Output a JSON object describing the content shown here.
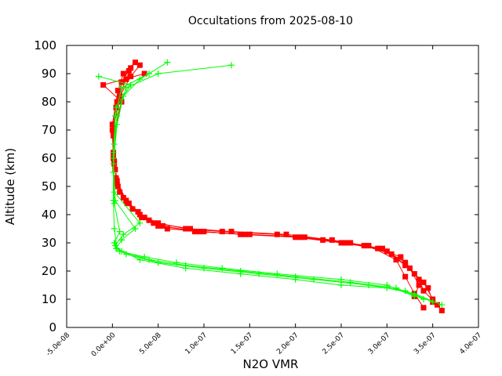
{
  "chart_data": {
    "type": "scatter",
    "title": "Occultations from 2025-08-10",
    "xlabel": "N2O VMR",
    "ylabel": "Altitude (km)",
    "xlim": [
      -5e-08,
      4e-07
    ],
    "ylim": [
      0,
      100
    ],
    "x_ticks": [
      -5e-08,
      0,
      5e-08,
      1e-07,
      1.5e-07,
      2e-07,
      2.5e-07,
      3e-07,
      3.5e-07,
      4e-07
    ],
    "x_tick_labels": [
      "-5.0e-08",
      "0.0e+00",
      "5.0e-08",
      "1.0e-07",
      "1.5e-07",
      "2.0e-07",
      "2.5e-07",
      "3.0e-07",
      "3.5e-07",
      "4.0e-07"
    ],
    "y_ticks": [
      0,
      10,
      20,
      30,
      40,
      50,
      60,
      70,
      80,
      90,
      100
    ],
    "y_tick_labels": [
      "0",
      "10",
      "20",
      "30",
      "40",
      "50",
      "60",
      "70",
      "80",
      "90",
      "100"
    ],
    "grid": false,
    "legend": "none",
    "series": [
      {
        "marker": "square",
        "color": "#ff0000",
        "profiles": [
          {
            "x": [
              3.4e-07,
              3.3e-07,
              3.2e-07,
              3.1e-07,
              2.8e-07,
              2.3e-07,
              1.8e-07,
              1.2e-07,
              8e-08,
              5e-08,
              3e-08,
              1.5e-08,
              5e-09,
              1e-09,
              0,
              5e-09,
              1.5e-08,
              2e-08
            ],
            "y": [
              7,
              12,
              18,
              24,
              29,
              31,
              33,
              34,
              35,
              37,
              40,
              45,
              52,
              60,
              70,
              80,
              88,
              92
            ]
          },
          {
            "x": [
              3.6e-07,
              3.5e-07,
              3.4e-07,
              3.2e-07,
              3e-07,
              2.6e-07,
              2.1e-07,
              1.5e-07,
              9e-08,
              5.5e-08,
              3.5e-08,
              1.8e-08,
              6e-09,
              2e-09,
              1e-09,
              8e-09,
              2e-08,
              3e-08
            ],
            "y": [
              6,
              10,
              16,
              22,
              27,
              30,
              32,
              33,
              34,
              36,
              39,
              44,
              50,
              58,
              70,
              82,
              89,
              93
            ]
          },
          {
            "x": [
              3.5e-07,
              3.45e-07,
              3.3e-07,
              3.15e-07,
              2.9e-07,
              2.5e-07,
              2e-07,
              1.4e-07,
              1e-07,
              6e-08,
              4e-08,
              2.2e-08,
              8e-09,
              3e-09,
              1e-09,
              1e-08,
              -1e-08,
              3.5e-08
            ],
            "y": [
              9,
              14,
              19,
              25,
              28,
              30,
              32,
              33,
              34,
              35,
              38,
              42,
              48,
              56,
              68,
              80,
              86,
              90
            ]
          },
          {
            "x": [
              3.3e-07,
              3.35e-07,
              3.25e-07,
              3.05e-07,
              2.75e-07,
              2.4e-07,
              1.9e-07,
              1.3e-07,
              8.5e-08,
              4.5e-08,
              2.8e-08,
              1.2e-08,
              4e-09,
              1e-09,
              0,
              6e-09,
              1.2e-08,
              2.5e-08
            ],
            "y": [
              11,
              15,
              21,
              26,
              29,
              31,
              33,
              34,
              35,
              37,
              41,
              46,
              53,
              62,
              72,
              84,
              90,
              94
            ]
          },
          {
            "x": [
              3.55e-07,
              3.4e-07,
              3.35e-07,
              3.2e-07,
              2.95e-07,
              2.55e-07,
              2.05e-07,
              1.45e-07,
              9.5e-08,
              5e-08,
              3.2e-08,
              1.6e-08,
              5e-09,
              2e-09,
              1e-09,
              4e-09,
              1e-08,
              1.8e-08
            ],
            "y": [
              8,
              13,
              17,
              23,
              28,
              30,
              32,
              33,
              34,
              36,
              39,
              44,
              51,
              59,
              69,
              78,
              87,
              91
            ]
          }
        ]
      },
      {
        "marker": "plus",
        "color": "#00ff00",
        "profiles": [
          {
            "x": [
              3.6e-07,
              3.3e-07,
              3e-07,
              2.5e-07,
              2e-07,
              1.4e-07,
              8e-08,
              3e-08,
              5e-09,
              2e-09,
              1e-09,
              1e-09,
              2e-09,
              5e-09,
              1.5e-08,
              5e-08,
              1.3e-07
            ],
            "y": [
              8,
              12,
              14,
              15,
              17,
              19,
              21,
              24,
              28,
              35,
              45,
              55,
              65,
              75,
              85,
              90,
              93
            ]
          },
          {
            "x": [
              3.5e-07,
              3.2e-07,
              2.8e-07,
              2.2e-07,
              1.6e-07,
              1e-07,
              5e-08,
              1.5e-08,
              4e-09,
              1e-08,
              2.5e-08,
              3e-09,
              1e-09,
              3e-09,
              1e-08,
              4e-08
            ],
            "y": [
              9,
              13,
              15,
              17,
              19,
              21,
              23,
              26,
              28,
              31,
              35,
              45,
              60,
              75,
              85,
              90
            ]
          },
          {
            "x": [
              3.4e-07,
              3.1e-07,
              2.6e-07,
              2e-07,
              1.4e-07,
              8e-08,
              4e-08,
              1e-08,
              3e-09,
              1.2e-08,
              3e-08,
              2e-09,
              1e-09,
              4e-09,
              2e-08,
              -1.5e-08
            ],
            "y": [
              10,
              14,
              16,
              18,
              20,
              22,
              24,
              27,
              29,
              33,
              37,
              48,
              62,
              78,
              86,
              89
            ]
          },
          {
            "x": [
              3.3e-07,
              3e-07,
              2.5e-07,
              1.8e-07,
              1.2e-07,
              7e-08,
              3.5e-08,
              8e-09,
              2e-09,
              8e-09,
              2e-09,
              1e-09,
              5e-09,
              1.2e-08,
              3e-08,
              6e-08
            ],
            "y": [
              11,
              15,
              17,
              19,
              21,
              23,
              25,
              27,
              30,
              34,
              44,
              58,
              72,
              82,
              88,
              94
            ]
          }
        ]
      }
    ]
  }
}
